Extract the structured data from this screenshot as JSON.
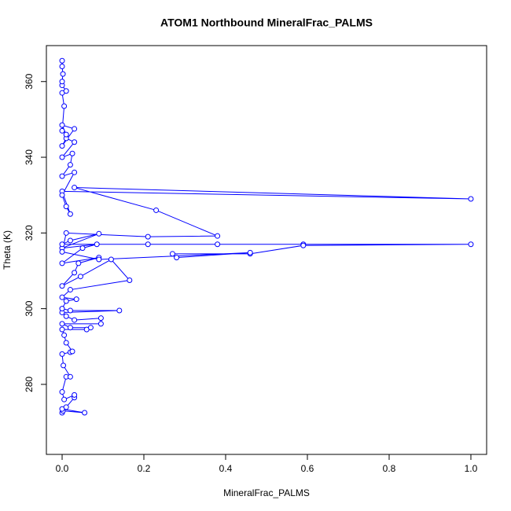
{
  "chart_data": {
    "type": "line",
    "title": "ATOM1 Northbound MineralFrac_PALMS",
    "x_label": "MineralFrac_PALMS",
    "y_label": "Theta (K)",
    "color": "#0000ff",
    "markers": true,
    "xlim": [
      -0.0385,
      1.0385
    ],
    "ylim": [
      261.5,
      369.5
    ],
    "xticks": [
      {
        "value": 0,
        "label": "0.0"
      },
      {
        "value": 0.2,
        "label": "0.2"
      },
      {
        "value": 0.4,
        "label": "0.4"
      },
      {
        "value": 0.6,
        "label": "0.6"
      },
      {
        "value": 0.8,
        "label": "0.8"
      },
      {
        "value": 1.0,
        "label": "1.0"
      }
    ],
    "yticks": [
      280,
      300,
      320,
      340,
      360
    ],
    "x": [
      0.0,
      0.002,
      0.055,
      0.0,
      0.01,
      0.03,
      0.03,
      0.005,
      0.0,
      0.01,
      0.02,
      0.003,
      0.0,
      0.02,
      0.025,
      0.01,
      0.005,
      0.0,
      0.06,
      0.07,
      0.02,
      0.0,
      0.095,
      0.095,
      0.03,
      0.01,
      0.0,
      0.14,
      0.02,
      0.0,
      0.01,
      0.035,
      0.0,
      0.02,
      0.165,
      0.12,
      0.045,
      0.0,
      0.03,
      0.04,
      0.09,
      0.0,
      0.05,
      0.085,
      0.0,
      0.09,
      0.02,
      0.0,
      0.21,
      0.38,
      0.59,
      1.0,
      0.59,
      0.46,
      0.27,
      0.28,
      0.46,
      0.09,
      0.0,
      0.01,
      0.21,
      0.38,
      0.23,
      0.03,
      1.0,
      0.0,
      0.02,
      0.01,
      0.0,
      0.03,
      0.0,
      0.02,
      0.025,
      0.0,
      0.03,
      0.01,
      0.0,
      0.03,
      0.0,
      0.01,
      0.0,
      0.005,
      0.0,
      0.01,
      0.0,
      0.0,
      0.002,
      0.0,
      0.0
    ],
    "values": [
      272.5,
      273,
      272.5,
      273.5,
      274,
      276.5,
      277.2,
      276,
      278,
      282,
      282,
      285,
      288,
      288.5,
      288.7,
      291,
      293,
      294.5,
      294.5,
      295,
      295,
      296,
      296,
      297.5,
      297,
      298,
      299,
      299.5,
      299.5,
      300,
      302,
      302.5,
      303,
      305,
      307.5,
      313,
      308.5,
      306,
      309.5,
      312,
      313.5,
      312,
      316,
      317,
      316,
      319.8,
      318,
      317,
      317,
      317,
      317,
      317,
      316.7,
      314.5,
      314.5,
      313.5,
      314.8,
      313,
      315,
      320,
      319,
      319.2,
      326,
      332,
      329,
      331,
      325,
      327,
      330,
      336,
      335,
      338,
      341,
      340,
      344,
      345,
      343,
      347.5,
      348.5,
      346,
      347,
      353.5,
      357,
      357.5,
      359,
      360,
      362,
      364,
      365.5
    ]
  }
}
